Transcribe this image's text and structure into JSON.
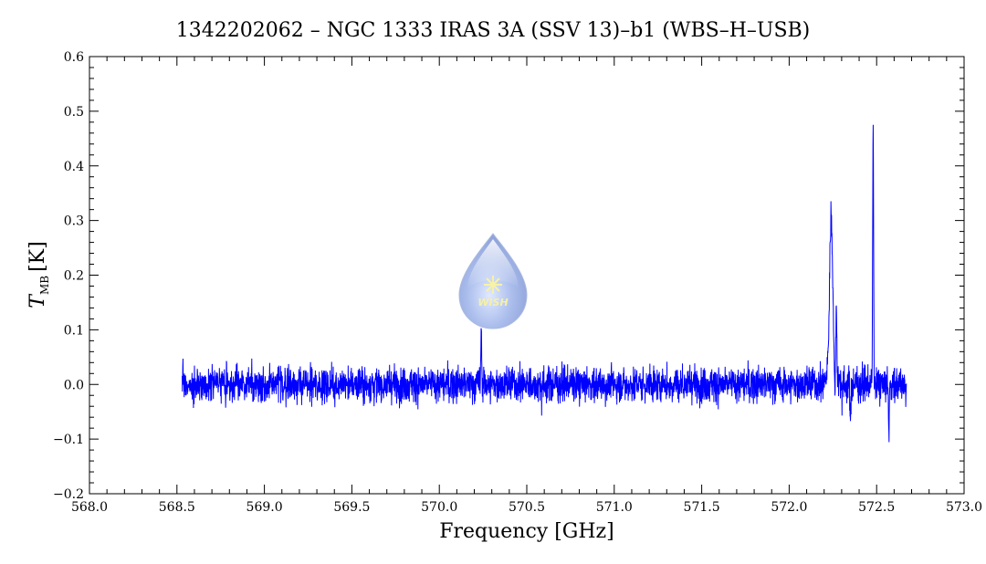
{
  "chart_data": {
    "type": "line",
    "title": "1342202062 – NGC 1333 IRAS 3A (SSV 13)–b1 (WBS–H–USB)",
    "xlabel": "Frequency [GHz]",
    "ylabel_main": "T",
    "ylabel_sub": "MB",
    "ylabel_unit": "[K]",
    "xlim": [
      568.0,
      573.0
    ],
    "ylim": [
      -0.2,
      0.6
    ],
    "xticks": [
      "568.0",
      "568.5",
      "569.0",
      "569.5",
      "570.0",
      "570.5",
      "571.0",
      "571.5",
      "572.0",
      "572.5",
      "573.0"
    ],
    "yticks": [
      "−0.2",
      "−0.1",
      "0.0",
      "0.1",
      "0.2",
      "0.3",
      "0.4",
      "0.5",
      "0.6"
    ],
    "series": [
      {
        "color": "#0000ff",
        "x_range": [
          568.53,
          572.67
        ],
        "noise_rms": 0.016,
        "features": [
          {
            "type": "emission",
            "x": 572.24,
            "peak": 0.26
          },
          {
            "type": "emission",
            "x": 572.27,
            "peak": 0.13
          },
          {
            "type": "absorption",
            "x": 572.26,
            "peak": -0.06
          },
          {
            "type": "absorption",
            "x": 572.35,
            "peak": -0.08
          },
          {
            "type": "emission",
            "x": 572.48,
            "peak": 0.49
          },
          {
            "type": "emission",
            "x": 570.24,
            "peak": 0.11
          },
          {
            "type": "absorption",
            "x": 572.57,
            "peak": -0.09
          }
        ]
      }
    ],
    "grid": false,
    "legend": "none"
  },
  "logo": {
    "text": "WISH",
    "color": "#6f8fd8"
  }
}
